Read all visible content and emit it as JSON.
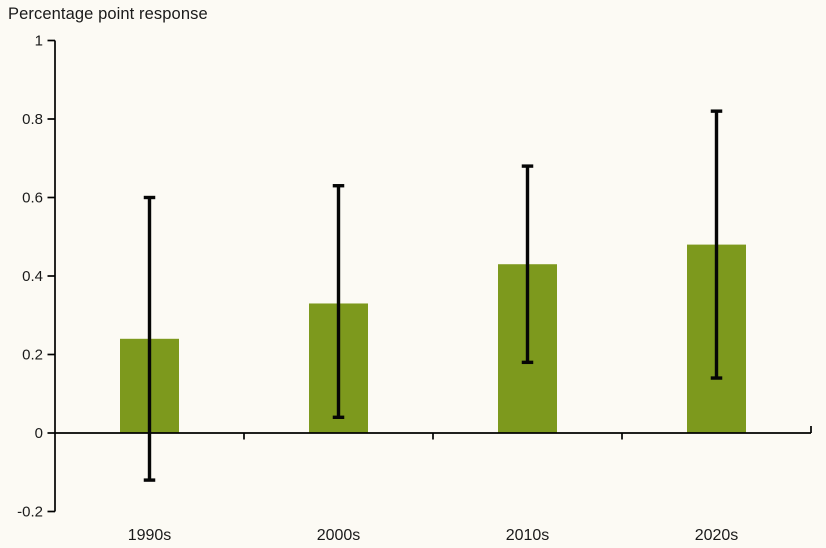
{
  "chart_data": {
    "type": "bar",
    "title": "Percentage point response",
    "xlabel": "",
    "ylabel": "Percentage point response",
    "categories": [
      "1990s",
      "2000s",
      "2010s",
      "2020s"
    ],
    "values": [
      0.24,
      0.33,
      0.43,
      0.48
    ],
    "error_bars": {
      "low": [
        -0.12,
        0.04,
        0.18,
        0.14
      ],
      "high": [
        0.6,
        0.63,
        0.68,
        0.82
      ]
    },
    "y_ticks": [
      "1",
      "0.8",
      "0.6",
      "0.4",
      "0.2",
      "0",
      "-0.2"
    ],
    "y_tick_values": [
      1,
      0.8,
      0.6,
      0.4,
      0.2,
      0,
      -0.2
    ],
    "ylim": [
      -0.2,
      1
    ],
    "grid": false,
    "legend_position": "none",
    "colors": {
      "bar": "#7d991d",
      "error_bar": "#060606",
      "axis": "#000000",
      "text": "#1a1a1a",
      "background": "#fcfaf4"
    }
  }
}
